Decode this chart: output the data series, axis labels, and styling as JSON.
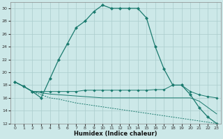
{
  "xlabel": "Humidex (Indice chaleur)",
  "bg_color": "#cce8e8",
  "grid_color": "#aacccc",
  "line_color": "#1a7a6e",
  "xlim": [
    -0.5,
    23.5
  ],
  "ylim": [
    12,
    31
  ],
  "xticks": [
    0,
    1,
    2,
    3,
    4,
    5,
    6,
    7,
    8,
    9,
    10,
    11,
    12,
    13,
    14,
    15,
    16,
    17,
    18,
    19,
    20,
    21,
    22,
    23
  ],
  "yticks": [
    12,
    14,
    16,
    18,
    20,
    22,
    24,
    26,
    28,
    30
  ],
  "line1_x": [
    0,
    1,
    2,
    3,
    4,
    5,
    6,
    7,
    8,
    9,
    10,
    11,
    12,
    13,
    14,
    15,
    16,
    17,
    18,
    19,
    20,
    21,
    22,
    23
  ],
  "line1_y": [
    18.5,
    17.8,
    17.0,
    16.0,
    19.0,
    22.0,
    24.5,
    27.0,
    28.0,
    29.5,
    30.5,
    30.0,
    30.0,
    30.0,
    30.0,
    28.5,
    24.0,
    20.5,
    18.0,
    18.0,
    16.5,
    14.5,
    13.0,
    12.0
  ],
  "line2_x": [
    0,
    1,
    2,
    3,
    4,
    5,
    6,
    7,
    8,
    9,
    10,
    11,
    12,
    13,
    14,
    15,
    16,
    17,
    18,
    19,
    20,
    21,
    22,
    23
  ],
  "line2_y": [
    18.5,
    17.8,
    17.0,
    17.0,
    17.0,
    17.0,
    17.0,
    17.0,
    17.2,
    17.2,
    17.2,
    17.2,
    17.2,
    17.2,
    17.2,
    17.2,
    17.3,
    17.3,
    18.0,
    18.0,
    17.0,
    16.5,
    16.2,
    16.0
  ],
  "line3_x": [
    0,
    1,
    2,
    3,
    4,
    5,
    6,
    7,
    8,
    9,
    10,
    11,
    12,
    13,
    14,
    15,
    16,
    17,
    18,
    19,
    20,
    21,
    22,
    23
  ],
  "line3_y": [
    18.5,
    17.8,
    17.0,
    16.8,
    16.6,
    16.5,
    16.4,
    16.3,
    16.2,
    16.1,
    16.0,
    16.0,
    16.0,
    16.0,
    16.0,
    16.0,
    16.0,
    16.0,
    16.0,
    16.0,
    16.0,
    15.5,
    14.5,
    13.5
  ],
  "line4_x": [
    0,
    1,
    2,
    3,
    4,
    5,
    6,
    7,
    8,
    9,
    10,
    11,
    12,
    13,
    14,
    15,
    16,
    17,
    18,
    19,
    20,
    21,
    22,
    23
  ],
  "line4_y": [
    18.5,
    17.8,
    17.0,
    16.5,
    16.0,
    15.8,
    15.5,
    15.2,
    15.0,
    14.8,
    14.6,
    14.4,
    14.2,
    14.0,
    13.8,
    13.6,
    13.4,
    13.2,
    13.0,
    12.8,
    12.6,
    12.4,
    12.2,
    12.0
  ]
}
